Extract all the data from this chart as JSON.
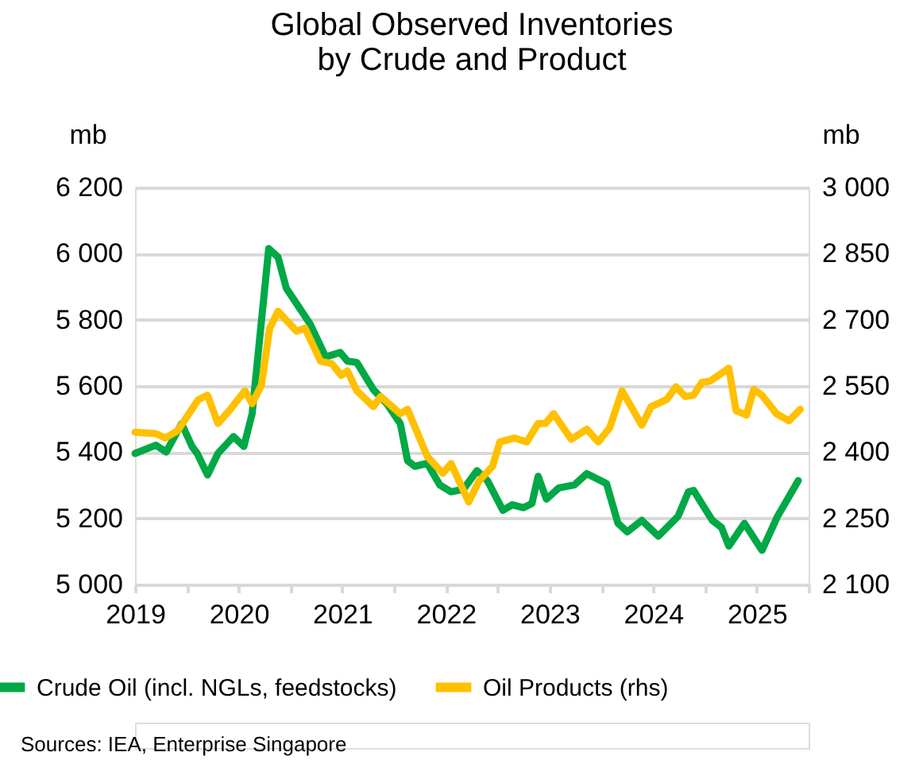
{
  "chart_data": {
    "type": "line",
    "title": "Global Observed Inventories\nby Crude and Product",
    "ylabel": "mb",
    "y2label": "mb",
    "xlim": [
      2019,
      2025.5
    ],
    "xticks": [
      2019,
      {
        "value": 2019.5,
        "label": null
      },
      2020,
      {
        "value": 2020.5,
        "label": null
      },
      2021,
      {
        "value": 2021.5,
        "label": null
      },
      2022,
      {
        "value": 2022.5,
        "label": null
      },
      2023,
      {
        "value": 2023.5,
        "label": null
      },
      2024,
      {
        "value": 2024.5,
        "label": null
      },
      2025,
      {
        "value": 2025.5,
        "label": null
      }
    ],
    "ylim": [
      5000,
      6200
    ],
    "yticks": [
      {
        "value": 5000,
        "label": "5 000"
      },
      {
        "value": 5200,
        "label": "5 200"
      },
      {
        "value": 5400,
        "label": "5 400"
      },
      {
        "value": 5600,
        "label": "5 600"
      },
      {
        "value": 5800,
        "label": "5 800"
      },
      {
        "value": 6000,
        "label": "6 000"
      },
      {
        "value": 6200,
        "label": "6 200"
      }
    ],
    "y2lim": [
      2100,
      3000
    ],
    "y2ticks": [
      {
        "value": 2100,
        "label": "2 100"
      },
      {
        "value": 2250,
        "label": "2 250"
      },
      {
        "value": 2400,
        "label": "2 400"
      },
      {
        "value": 2550,
        "label": "2 550"
      },
      {
        "value": 2700,
        "label": "2 700"
      },
      {
        "value": 2850,
        "label": "2 850"
      },
      {
        "value": 3000,
        "label": "3 000"
      }
    ],
    "grid": "y",
    "legend": "bottom",
    "line_style": "solid",
    "marker": "none",
    "annotations": [
      "Sources: IEA, Enterprise Singapore"
    ],
    "series": [
      {
        "name": "Crude Oil (incl. NGLs, feedstocks)",
        "color": "#00a846",
        "x": [
          2019.0,
          2019.2,
          2019.3,
          2019.45,
          2019.55,
          2019.6,
          2019.7,
          2019.8,
          2019.95,
          2020.05,
          2020.13,
          2020.29,
          2020.38,
          2020.46,
          2020.69,
          2020.84,
          2020.98,
          2021.05,
          2021.14,
          2021.3,
          2021.43,
          2021.56,
          2021.63,
          2021.7,
          2021.82,
          2021.94,
          2022.05,
          2022.17,
          2022.3,
          2022.4,
          2022.55,
          2022.64,
          2022.75,
          2022.83,
          2022.89,
          2022.97,
          2023.09,
          2023.24,
          2023.36,
          2023.55,
          2023.66,
          2023.75,
          2023.89,
          2024.05,
          2024.24,
          2024.34,
          2024.39,
          2024.57,
          2024.66,
          2024.73,
          2024.88,
          2025.05,
          2025.2,
          2025.4
        ],
        "values": [
          5396,
          5421,
          5400,
          5486,
          5417,
          5396,
          5331,
          5396,
          5447,
          5417,
          5516,
          6015,
          5989,
          5895,
          5787,
          5688,
          5701,
          5675,
          5671,
          5589,
          5546,
          5486,
          5374,
          5357,
          5366,
          5301,
          5280,
          5288,
          5344,
          5314,
          5224,
          5241,
          5232,
          5245,
          5327,
          5258,
          5292,
          5301,
          5335,
          5305,
          5185,
          5159,
          5194,
          5146,
          5206,
          5280,
          5284,
          5194,
          5172,
          5116,
          5185,
          5103,
          5206,
          5314
        ]
      },
      {
        "name": "Oil Products (rhs)",
        "color": "#ffc000",
        "axis": "y2",
        "x": [
          2019.0,
          2019.2,
          2019.29,
          2019.41,
          2019.61,
          2019.7,
          2019.8,
          2019.92,
          2020.06,
          2020.13,
          2020.22,
          2020.3,
          2020.38,
          2020.56,
          2020.64,
          2020.79,
          2020.9,
          2020.99,
          2021.05,
          2021.14,
          2021.3,
          2021.37,
          2021.56,
          2021.63,
          2021.82,
          2021.97,
          2022.05,
          2022.22,
          2022.32,
          2022.45,
          2022.52,
          2022.66,
          2022.78,
          2022.89,
          2022.96,
          2023.04,
          2023.21,
          2023.36,
          2023.47,
          2023.58,
          2023.7,
          2023.89,
          2023.98,
          2024.13,
          2024.22,
          2024.31,
          2024.39,
          2024.47,
          2024.55,
          2024.73,
          2024.8,
          2024.9,
          2024.97,
          2025.05,
          2025.19,
          2025.31,
          2025.42
        ],
        "values": [
          2445,
          2442,
          2432,
          2448,
          2519,
          2529,
          2465,
          2497,
          2539,
          2510,
          2552,
          2681,
          2719,
          2674,
          2681,
          2606,
          2600,
          2574,
          2584,
          2539,
          2503,
          2526,
          2487,
          2497,
          2390,
          2352,
          2374,
          2287,
          2335,
          2368,
          2423,
          2432,
          2423,
          2465,
          2465,
          2487,
          2429,
          2452,
          2423,
          2455,
          2539,
          2461,
          2503,
          2519,
          2548,
          2526,
          2529,
          2558,
          2561,
          2590,
          2494,
          2484,
          2542,
          2529,
          2487,
          2471,
          2497
        ]
      }
    ]
  }
}
